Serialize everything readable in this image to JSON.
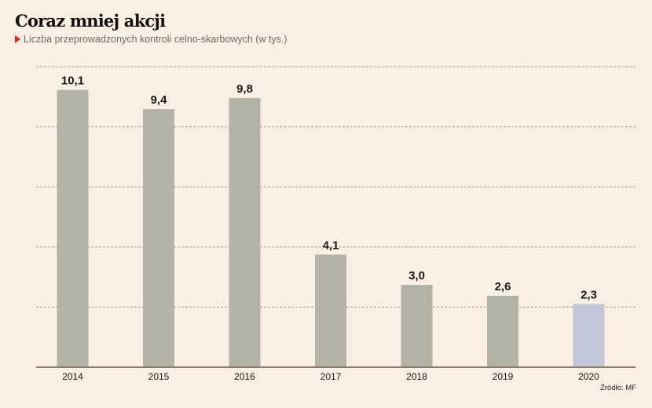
{
  "chart_data": {
    "type": "bar",
    "title": "Coraz mniej akcji",
    "subtitle": "Liczba przeprowadzonych kontroli celno-skarbowych (w tys.)",
    "source": "Źródło: MF",
    "categories": [
      "2014",
      "2015",
      "2016",
      "2017",
      "2018",
      "2019",
      "2020"
    ],
    "values": [
      10.1,
      9.4,
      9.8,
      4.1,
      3.0,
      2.6,
      2.3
    ],
    "value_labels": [
      "10,1",
      "9,4",
      "9,8",
      "4,1",
      "3,0",
      "2,6",
      "2,3"
    ],
    "highlight_index": 6,
    "xlabel": "",
    "ylabel": "",
    "ylim": [
      0,
      11
    ],
    "grid": true,
    "grid_lines": 5,
    "legend": "none",
    "colors": {
      "bar": "#b3b2a6",
      "highlight": "#c0c7d9",
      "grid": "#a89d94",
      "axis": "#8a7b6e",
      "accent": "#e0201b",
      "background": "#fbeee2"
    }
  }
}
